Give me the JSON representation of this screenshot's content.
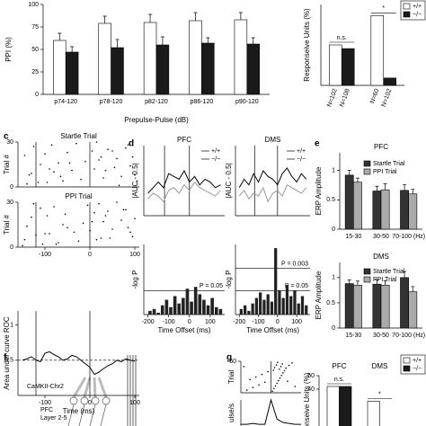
{
  "panel_labels": [
    "c",
    "d",
    "e",
    "f",
    "g"
  ],
  "diagram": {
    "labels": [
      "CaMKII-Chr2",
      "PFC",
      "Layer 2-5"
    ]
  },
  "chart_data": [
    {
      "type": "bar",
      "ylabel": "PPI (%)",
      "xlabel": "Prepulse-Pulse (dB)",
      "categories": [
        "p74-120",
        "p78-120",
        "p82-120",
        "p86-120",
        "p90-120"
      ],
      "series": [
        {
          "color": "#ffffff",
          "values": [
            60,
            79,
            80,
            82,
            83
          ],
          "errors": [
            8,
            8,
            9,
            9,
            8
          ]
        },
        {
          "color": "#1a1a1a",
          "values": [
            47,
            52,
            55,
            57,
            56
          ],
          "errors": [
            6,
            9,
            9,
            6,
            7
          ]
        }
      ],
      "ylim": [
        0,
        100
      ],
      "yticks": [
        0,
        25,
        50,
        75,
        100
      ]
    },
    {
      "type": "bar",
      "ylabel": "Responseive Units (%)",
      "categories": [
        null,
        null
      ],
      "series": [
        {
          "name": "+/+",
          "color": "#ffffff",
          "values": [
            11,
            19
          ],
          "n_labels": [
            "N=102",
            "N=60"
          ]
        },
        {
          "name": "−/−",
          "color": "#1a1a1a",
          "values": [
            10,
            2
          ],
          "n_labels": [
            "N=108",
            "N=102"
          ]
        }
      ],
      "annotations": [
        "n.s.",
        "*"
      ],
      "ylim": [
        0,
        22
      ],
      "legend": "top right"
    },
    {
      "type": "scatter",
      "title": "Startle Trial",
      "ylabel": "Trial #",
      "x": [
        -140,
        -95,
        -60,
        -20,
        30,
        70,
        100,
        -130,
        -80,
        -40,
        10,
        55,
        90,
        -110,
        -70,
        -10,
        20,
        60,
        95,
        -145,
        -100,
        -50,
        5,
        40,
        80,
        -125,
        -85,
        -30,
        15,
        65,
        105,
        -135,
        -90,
        -45,
        25,
        50,
        85,
        -115,
        -65,
        35
      ],
      "y": [
        2,
        3,
        4,
        5,
        6,
        7,
        8,
        9,
        10,
        11,
        12,
        13,
        14,
        15,
        16,
        17,
        18,
        19,
        20,
        21,
        22,
        23,
        24,
        25,
        26,
        27,
        28,
        29,
        30,
        1,
        4,
        8,
        12,
        16,
        20,
        24,
        28,
        3,
        7,
        11
      ],
      "xlim": [
        -160,
        110
      ],
      "ylim": [
        0,
        30
      ],
      "yticks": [
        0,
        30
      ],
      "vlines": [
        -120,
        0
      ]
    },
    {
      "type": "scatter",
      "title": "PPI Trial",
      "ylabel": "Trial #",
      "x": [
        -150,
        -105,
        -70,
        -25,
        15,
        45,
        95,
        -120,
        -90,
        -35,
        0,
        50,
        85,
        -140,
        -60,
        -15,
        30,
        70,
        100,
        -130,
        -95,
        -55,
        10,
        40,
        75,
        -110,
        -80,
        -5,
        20,
        60,
        -145,
        -100,
        -50,
        5,
        35,
        80,
        -125,
        -75,
        25,
        90
      ],
      "y": [
        1,
        2,
        3,
        4,
        5,
        6,
        7,
        8,
        9,
        10,
        11,
        12,
        13,
        14,
        15,
        16,
        17,
        18,
        19,
        20,
        21,
        22,
        23,
        24,
        25,
        26,
        27,
        28,
        29,
        30,
        5,
        9,
        13,
        17,
        21,
        25,
        29,
        2,
        6,
        10
      ],
      "xlim": [
        -160,
        110
      ],
      "xticks": [
        -100,
        0,
        100
      ],
      "ylim": [
        0,
        30
      ],
      "yticks": [
        0,
        30
      ],
      "vlines": [
        -120,
        0
      ]
    },
    {
      "type": "line",
      "ylabel": "Area under curve ROC",
      "xlabel": "Time (ms)",
      "color": "#000000",
      "x": [
        -150,
        -140,
        -130,
        -120,
        -110,
        -100,
        -90,
        -80,
        -70,
        -60,
        -50,
        -40,
        -30,
        -20,
        -10,
        0,
        10,
        20,
        30,
        40,
        50,
        60,
        70,
        80,
        90,
        100
      ],
      "values": [
        0.5,
        0.52,
        0.55,
        0.5,
        0.48,
        0.6,
        0.62,
        0.58,
        0.55,
        0.5,
        0.52,
        0.57,
        0.55,
        0.5,
        0.45,
        0.4,
        0.3,
        0.33,
        0.38,
        0.42,
        0.45,
        0.5,
        0.48,
        0.52,
        0.5,
        0.49
      ],
      "xlim": [
        -160,
        110
      ],
      "xticks": [
        -100,
        0,
        100
      ],
      "ylim": [
        0,
        1.2
      ],
      "yticks": [
        0.5,
        1
      ],
      "hlines": [
        0.5
      ],
      "vlines": [
        -120,
        0
      ]
    },
    {
      "type": "line",
      "title": "PFC",
      "ylabel": "|AUC - 0.5|",
      "legend": "top right",
      "x": [
        -200,
        -175,
        -150,
        -125,
        -100,
        -75,
        -50,
        -25,
        0,
        25,
        50,
        75,
        100,
        125,
        150
      ],
      "series": [
        {
          "name": "+/+",
          "color": "#000000",
          "values": [
            0.08,
            0.1,
            0.12,
            0.1,
            0.15,
            0.14,
            0.13,
            0.16,
            0.12,
            0.14,
            0.11,
            0.13,
            0.12,
            0.1,
            0.11
          ]
        },
        {
          "name": "−/−",
          "color": "#999999",
          "values": [
            0.06,
            0.08,
            0.07,
            0.05,
            0.09,
            0.1,
            0.08,
            0.11,
            0.09,
            0.12,
            0.1,
            0.09,
            0.08,
            0.07,
            0.09
          ]
        }
      ],
      "xlim": [
        -220,
        170
      ],
      "ylim": [
        0,
        0.25
      ],
      "vlines": [
        -120,
        0
      ]
    },
    {
      "type": "line",
      "title": "DMS",
      "ylabel": "|AUC - 0.5|",
      "legend": "top right",
      "x": [
        -200,
        -175,
        -150,
        -125,
        -100,
        -75,
        -50,
        -25,
        0,
        25,
        50,
        75,
        100,
        125,
        150
      ],
      "series": [
        {
          "name": "+/+",
          "color": "#000000",
          "values": [
            0.1,
            0.13,
            0.11,
            0.15,
            0.12,
            0.16,
            0.14,
            0.13,
            0.11,
            0.15,
            0.17,
            0.14,
            0.12,
            0.15,
            0.13
          ]
        },
        {
          "name": "−/−",
          "color": "#999999",
          "values": [
            0.07,
            0.09,
            0.06,
            0.08,
            0.07,
            0.1,
            0.05,
            0.08,
            0.09,
            0.07,
            0.11,
            0.1,
            0.09,
            0.08,
            0.1
          ]
        }
      ],
      "xlim": [
        -220,
        170
      ],
      "ylim": [
        0,
        0.25
      ],
      "vlines": [
        -120,
        0
      ]
    },
    {
      "type": "histogram",
      "ylabel": "-log P",
      "xlabel": "Time Offset (ms)",
      "color": "#222222",
      "bins": [
        -200,
        -180,
        -160,
        -140,
        -120,
        -100,
        -80,
        -60,
        -40,
        -20,
        0,
        20,
        40,
        60,
        80,
        100,
        120,
        140,
        160
      ],
      "values": [
        0.2,
        0.3,
        0.1,
        0.5,
        0.8,
        0.4,
        1.0,
        0.6,
        0.9,
        1.4,
        0.7,
        1.5,
        1.1,
        0.8,
        0.5,
        0.9,
        0.4,
        0.3
      ],
      "xlim": [
        -220,
        170
      ],
      "xticks": [
        -200,
        -100,
        0,
        100
      ],
      "ylim": [
        0,
        3.8
      ],
      "hlines": [
        {
          "value": 1.3,
          "label": "P = 0.05"
        }
      ]
    },
    {
      "type": "histogram",
      "ylabel": "-log P",
      "xlabel": "Time Offset (ms)",
      "color": "#222222",
      "bins": [
        -200,
        -180,
        -160,
        -140,
        -120,
        -100,
        -80,
        -60,
        -40,
        -20,
        0,
        20,
        40,
        60,
        80,
        100,
        120,
        140,
        160
      ],
      "values": [
        0.3,
        0.5,
        0.2,
        0.6,
        0.9,
        1.2,
        0.8,
        1.1,
        0.7,
        3.6,
        1.3,
        0.9,
        1.6,
        1.0,
        1.3,
        0.6,
        1.0,
        0.5
      ],
      "xlim": [
        -220,
        170
      ],
      "xticks": [
        -200,
        -100,
        0,
        100
      ],
      "ylim": [
        0,
        3.8
      ],
      "hlines": [
        {
          "value": 1.3,
          "label": "P = 0.05"
        },
        {
          "value": 2.5,
          "label": "P = 0.003"
        }
      ]
    },
    {
      "type": "bar",
      "title": "PFC",
      "ylabel": "ERP Amplitude",
      "legend": "top right",
      "categories": [
        "15-30",
        "30-50",
        "70-100 (Hz)"
      ],
      "series": [
        {
          "name": "Startle Trial",
          "color": "#333333",
          "values": [
            0.92,
            0.65,
            0.66
          ],
          "errors": [
            0.08,
            0.08,
            0.1
          ]
        },
        {
          "name": "PPI Trial",
          "color": "#aaaaaa",
          "values": [
            0.8,
            0.67,
            0.6
          ],
          "errors": [
            0.07,
            0.1,
            0.08
          ]
        }
      ],
      "ylim": [
        0,
        1.3
      ],
      "yticks": [
        0,
        0.5,
        1
      ]
    },
    {
      "type": "bar",
      "title": "DMS",
      "ylabel": "ERP Amplitude",
      "legend": "top right",
      "categories": [
        "15-30",
        "30-50",
        "70-100 (Hz)"
      ],
      "series": [
        {
          "name": "Startle Trial",
          "color": "#333333",
          "values": [
            0.88,
            0.87,
            1.0
          ],
          "errors": [
            0.07,
            0.08,
            0.12
          ]
        },
        {
          "name": "PPI Trial",
          "color": "#aaaaaa",
          "values": [
            0.85,
            0.85,
            0.72
          ],
          "errors": [
            0.08,
            0.09,
            0.1
          ]
        }
      ],
      "ylim": [
        0,
        1.3
      ],
      "yticks": [
        0,
        0.5,
        1
      ]
    },
    {
      "type": "scatter",
      "ylabel": "Trial",
      "x": [
        -80,
        -60,
        -40,
        -20,
        -70,
        -50,
        -30,
        -10,
        5,
        10,
        15,
        20,
        25,
        30,
        35,
        40,
        8,
        12,
        18,
        22,
        28,
        33,
        38,
        45,
        50,
        60,
        70,
        80,
        -90,
        55
      ],
      "y": [
        5,
        10,
        15,
        20,
        25,
        30,
        35,
        40,
        3,
        8,
        13,
        18,
        23,
        28,
        33,
        38,
        43,
        48,
        53,
        58,
        45,
        50,
        55,
        42,
        47,
        52,
        57,
        12,
        50,
        22
      ],
      "xlim": [
        -100,
        100
      ],
      "ylim": [
        0,
        60
      ],
      "yticks": [
        60
      ],
      "vlines": [
        0
      ]
    },
    {
      "type": "bar",
      "ylabel": "onseive Units (%)",
      "categories": [
        "PFC",
        "DMS"
      ],
      "series": [
        {
          "name": "+/+",
          "color": "#ffffff",
          "values": [
            42,
            31
          ]
        },
        {
          "name": "−/−",
          "color": "#1a1a1a",
          "values": [
            42,
            2
          ]
        }
      ],
      "annotations": [
        "n.s.",
        "*"
      ],
      "ylim": [
        0,
        50
      ],
      "yticks": [
        40,
        50
      ],
      "legend": "top right"
    },
    {
      "type": "line",
      "ylabel": "ulse/s",
      "color": "#000000",
      "x": [
        -100,
        -80,
        -60,
        -40,
        -20,
        0,
        20,
        40,
        60,
        80,
        100
      ],
      "values": [
        2,
        2,
        3,
        2,
        2,
        30,
        8,
        4,
        3,
        2,
        2
      ],
      "xlim": [
        -100,
        100
      ],
      "ylim": [
        0,
        30
      ]
    }
  ]
}
